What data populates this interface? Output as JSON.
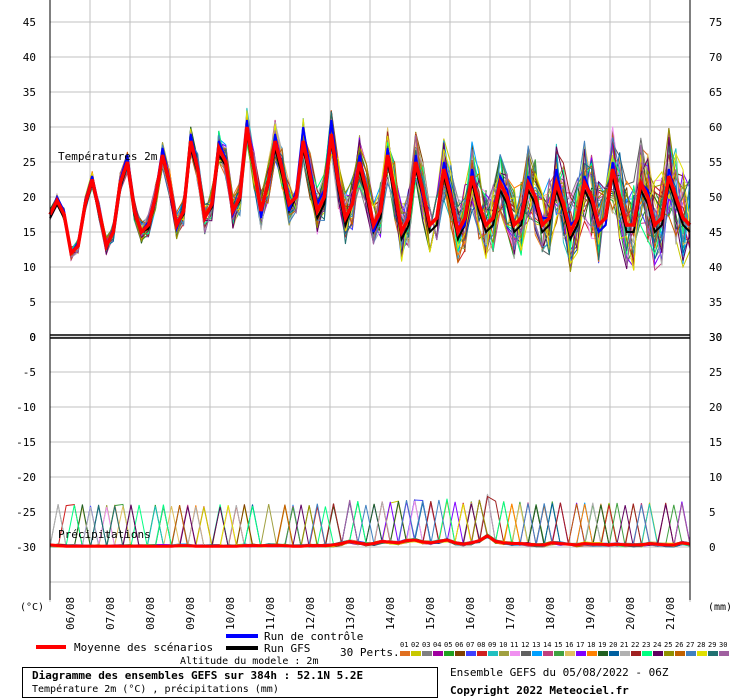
{
  "chart_data": {
    "type": "line",
    "x_labels": [
      "06/08",
      "07/08",
      "08/08",
      "09/08",
      "10/08",
      "11/08",
      "12/08",
      "13/08",
      "14/08",
      "15/08",
      "16/08",
      "17/08",
      "18/08",
      "19/08",
      "20/08",
      "21/08"
    ],
    "temperature_panel": {
      "label": "Températures 2m",
      "left_axis_ticks": [
        "45",
        "40",
        "35",
        "30",
        "25",
        "20",
        "15",
        "10",
        "5",
        "0"
      ],
      "right_axis_ticks": [
        "75",
        "70",
        "65",
        "60",
        "55",
        "50",
        "45",
        "40",
        "35",
        "30"
      ],
      "left_ylim": [
        0,
        45
      ],
      "mean_scenarios": [
        17.5,
        19.5,
        17.5,
        12,
        13,
        19,
        22.5,
        18,
        13,
        15,
        22,
        25,
        18,
        15,
        16,
        20,
        26,
        22,
        16,
        18,
        28,
        24,
        17,
        19,
        27,
        25,
        18,
        20,
        30,
        24,
        18,
        22,
        28,
        24,
        19,
        20,
        28,
        23,
        18,
        20,
        29,
        22,
        17,
        19,
        25,
        21,
        16,
        18,
        26,
        21,
        15,
        17,
        25,
        21,
        16,
        17,
        24,
        20,
        15,
        17,
        23,
        19,
        16,
        17,
        22,
        20,
        16,
        17,
        22,
        20,
        16,
        17,
        22,
        19,
        15,
        17,
        22,
        20,
        16,
        17,
        24,
        20,
        16,
        16,
        22,
        20,
        16,
        17,
        23,
        20,
        17,
        16
      ],
      "control_run": [
        17.5,
        20,
        18,
        12,
        13.5,
        19.5,
        23,
        18.5,
        13,
        15.5,
        22.5,
        26,
        18.5,
        15,
        16.5,
        20.5,
        27,
        22.5,
        15.5,
        18,
        29,
        24.5,
        17,
        19,
        28,
        25.5,
        17.5,
        20,
        31,
        24,
        17,
        22,
        29,
        24,
        18,
        21,
        30,
        24,
        19,
        21,
        31,
        23,
        17,
        19,
        26,
        21,
        15,
        18,
        27,
        21,
        15,
        17,
        26,
        20,
        16,
        17,
        25,
        21,
        15,
        16,
        24,
        19,
        16,
        17,
        23,
        21,
        16,
        17,
        23,
        20,
        17,
        17,
        24,
        19,
        16,
        17,
        23,
        20,
        15,
        16,
        25,
        20,
        16,
        16,
        22,
        21,
        16,
        17,
        24,
        20,
        17,
        16
      ],
      "gfs_run": [
        17,
        19,
        17,
        12,
        13,
        18.5,
        22,
        17.5,
        13,
        15,
        21.5,
        24.5,
        17.5,
        15,
        15.5,
        19.5,
        25.5,
        21.5,
        16,
        17.5,
        27,
        23.5,
        17,
        18.5,
        26,
        24.5,
        18,
        19.5,
        29,
        23.5,
        18,
        21.5,
        27,
        23,
        18,
        20,
        27,
        22,
        17,
        19,
        28,
        21,
        16,
        19,
        24,
        20,
        15,
        17,
        25,
        20,
        14,
        16,
        24,
        20,
        15,
        16,
        23,
        19,
        14,
        16,
        22,
        18,
        15,
        16,
        21,
        19,
        15,
        16,
        21,
        19,
        15,
        16,
        21,
        18,
        14,
        16,
        21,
        19,
        15,
        16,
        23,
        19,
        15,
        15,
        21,
        19,
        15,
        16,
        22,
        19,
        16,
        15
      ]
    },
    "precipitation_panel": {
      "label": "Précipitations",
      "left_axis_ticks": [
        "0",
        "-5",
        "-10",
        "-15",
        "-20",
        "-25",
        "-30"
      ],
      "right_axis_ticks": [
        "30",
        "25",
        "20",
        "15",
        "10",
        "5",
        "0"
      ],
      "left_ylim": [
        -30,
        0
      ],
      "right_ylim": [
        0,
        30
      ],
      "mean_scenarios": [
        0.3,
        0.2,
        0.1,
        0.1,
        0.1,
        0.1,
        0.1,
        0.1,
        0.1,
        0.1,
        0.1,
        0.1,
        0.1,
        0.1,
        0.1,
        0.1,
        0.2,
        0.2,
        0.1,
        0.1,
        0.1,
        0.1,
        0.1,
        0.1,
        0.2,
        0.2,
        0.2,
        0.2,
        0.2,
        0.2,
        0.1,
        0.1,
        0.2,
        0.2,
        0.2,
        0.3,
        0.5,
        0.8,
        0.6,
        0.4,
        0.5,
        0.8,
        0.7,
        0.6,
        0.9,
        1.0,
        0.7,
        0.6,
        0.8,
        1.0,
        0.6,
        0.4,
        0.6,
        0.9,
        1.6,
        0.8,
        0.6,
        0.5,
        0.5,
        0.4,
        0.3,
        0.3,
        0.6,
        0.5,
        0.4,
        0.3,
        0.5,
        0.4,
        0.4,
        0.3,
        0.4,
        0.3,
        0.3,
        0.3,
        0.5,
        0.4,
        0.3,
        0.3,
        0.6,
        0.4
      ]
    },
    "axis_unit_left": "(°C)",
    "axis_unit_right": "(mm)",
    "legend": {
      "mean": "Moyenne des scénarios",
      "control": "Run de contrôle",
      "gfs": "Run GFS",
      "perts": "30 Perts.",
      "pert_numbers": [
        "01",
        "02",
        "03",
        "04",
        "05",
        "06",
        "07",
        "08",
        "09",
        "10",
        "11",
        "12",
        "13",
        "14",
        "15",
        "16",
        "17",
        "18",
        "19",
        "20",
        "21",
        "22",
        "23",
        "24",
        "25",
        "26",
        "27",
        "28",
        "29",
        "30"
      ],
      "pert_colors": [
        "#e07020",
        "#c8c800",
        "#808080",
        "#a000a0",
        "#20a020",
        "#804000",
        "#4040ff",
        "#d02020",
        "#20c0c0",
        "#a0a040",
        "#f090f0",
        "#606060",
        "#00a0ff",
        "#c04080",
        "#40a040",
        "#e0c060",
        "#8000ff",
        "#ff8000",
        "#206020",
        "#0060a0",
        "#b0b0b0",
        "#a02020",
        "#00ff80",
        "#600060",
        "#909000",
        "#c06000",
        "#4080c0",
        "#e0e000",
        "#207070",
        "#a060a0"
      ],
      "mean_color": "#ff0000",
      "control_color": "#0000ff",
      "gfs_color": "#000000"
    },
    "altitude": "Altitude du modele : 2m",
    "footer": {
      "title": "Diagramme des ensembles GEFS sur 384h : 52.1N 5.2E",
      "subtitle": "Température 2m (°C) , précipitations (mm)",
      "run": "Ensemble GEFS du 05/08/2022 - 06Z",
      "copyright": "Copyright 2022 Meteociel.fr"
    }
  }
}
